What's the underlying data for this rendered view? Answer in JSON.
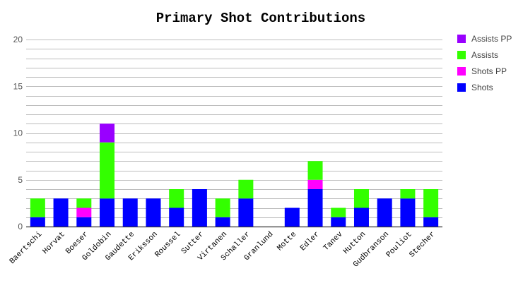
{
  "chart_data": {
    "type": "bar",
    "stacked": true,
    "title": "Primary Shot Contributions",
    "categories": [
      "Baertschi",
      "Horvat",
      "Boeser",
      "Goldobin",
      "Gaudette",
      "Eriksson",
      "Roussel",
      "Sutter",
      "Virtanen",
      "Schaller",
      "Granlund",
      "Motte",
      "Edler",
      "Tanev",
      "Hutton",
      "Gudbranson",
      "Pouliot",
      "Stecher"
    ],
    "series": [
      {
        "name": "Shots",
        "color": "#0000ff",
        "values": [
          1,
          3,
          1,
          3,
          3,
          3,
          2,
          4,
          1,
          3,
          0,
          2,
          4,
          1,
          2,
          3,
          3,
          1
        ]
      },
      {
        "name": "Shots PP",
        "color": "#ff00ff",
        "values": [
          0,
          0,
          1,
          0,
          0,
          0,
          0,
          0,
          0,
          0,
          0,
          0,
          1,
          0,
          0,
          0,
          0,
          0
        ]
      },
      {
        "name": "Assists",
        "color": "#33ff00",
        "values": [
          2,
          0,
          1,
          6,
          0,
          0,
          2,
          0,
          2,
          2,
          0,
          0,
          2,
          1,
          2,
          0,
          1,
          3
        ]
      },
      {
        "name": "Assists PP",
        "color": "#9900ff",
        "values": [
          0,
          0,
          0,
          2,
          0,
          0,
          0,
          0,
          0,
          0,
          0,
          0,
          0,
          0,
          0,
          0,
          0,
          0
        ]
      }
    ],
    "ylim": [
      0,
      20
    ],
    "yticks": [
      0,
      5,
      10,
      15,
      20
    ],
    "gridline_step": 1,
    "grid": true,
    "legend_position": "right"
  }
}
